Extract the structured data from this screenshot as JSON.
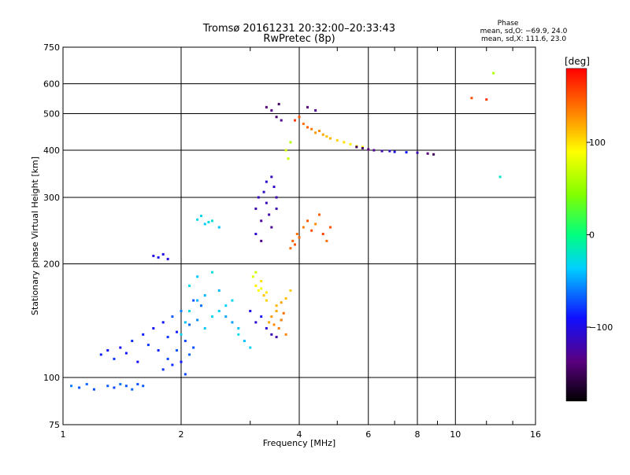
{
  "chart_data": {
    "type": "scatter",
    "title": "Tromsø 20161231 20:32:00–20:33:43",
    "subtitle": "RwPretec (8p)",
    "xlabel": "Frequency [MHz]",
    "ylabel": "Stationary phase Virtual Height [km]",
    "xscale": "log2",
    "yscale": "log",
    "xlim": [
      1,
      16
    ],
    "ylim": [
      75,
      750
    ],
    "x_ticks": [
      1,
      2,
      4,
      6,
      8,
      10,
      16
    ],
    "x_tick_labels": [
      "1",
      "2",
      "4",
      "6",
      "8",
      "10",
      "16"
    ],
    "y_ticks": [
      75,
      100,
      200,
      300,
      400,
      500,
      600,
      750
    ],
    "y_tick_labels": [
      "75",
      "100",
      "200",
      "300",
      "400",
      "500",
      "600",
      "750"
    ],
    "grid": true,
    "stats_legend": {
      "title": "Phase",
      "line1": "mean, sd,O: −69.9, 24.0",
      "line2": "mean, sd,X: 111.6, 23.0"
    },
    "colorbar": {
      "label": "[deg]",
      "range": [
        -180,
        180
      ],
      "ticks": [
        100,
        0,
        -100
      ],
      "tick_labels": [
        "100",
        "0",
        "−100"
      ]
    },
    "series": [
      {
        "x": [
          1.05,
          1.1,
          1.15,
          1.2,
          1.3,
          1.35,
          1.4,
          1.45,
          1.5,
          1.55,
          1.6,
          1.25,
          1.3,
          1.35,
          1.4,
          1.45,
          1.5,
          1.55,
          1.6,
          1.65,
          1.7,
          1.75,
          1.8,
          1.85,
          1.9,
          1.95,
          2.0,
          2.05,
          2.1,
          2.15,
          2.2,
          2.25,
          1.8,
          1.85,
          1.9,
          1.95,
          2.0,
          2.05,
          2.1,
          2.15,
          1.7,
          1.75,
          1.8,
          1.85
        ],
        "y": [
          95,
          94,
          96,
          93,
          95,
          94,
          96,
          95,
          93,
          96,
          95,
          115,
          118,
          112,
          120,
          116,
          125,
          110,
          130,
          122,
          135,
          118,
          140,
          128,
          145,
          132,
          150,
          125,
          138,
          160,
          142,
          155,
          105,
          112,
          108,
          118,
          110,
          102,
          115,
          120,
          210,
          208,
          212,
          206
        ],
        "phase": [
          -60,
          -70,
          -65,
          -72,
          -68,
          -75,
          -62,
          -70,
          -66,
          -73,
          -69,
          -85,
          -90,
          -80,
          -95,
          -88,
          -82,
          -92,
          -86,
          -78,
          -94,
          -84,
          -90,
          -80,
          -70,
          -86,
          -60,
          -74,
          -65,
          -70,
          -55,
          -62,
          -80,
          -75,
          -82,
          -70,
          -88,
          -76,
          -65,
          -72,
          -100,
          -95,
          -98,
          -102
        ]
      },
      {
        "x": [
          2.0,
          2.05,
          2.1,
          2.2,
          2.3,
          2.4,
          2.5,
          2.6,
          2.7,
          2.8,
          2.9,
          3.0,
          2.1,
          2.2,
          2.3,
          2.4,
          2.5,
          2.6,
          2.7,
          2.8,
          2.2,
          2.3,
          2.4,
          2.5,
          2.25,
          2.35
        ],
        "y": [
          130,
          140,
          150,
          160,
          135,
          145,
          170,
          155,
          140,
          130,
          125,
          120,
          175,
          185,
          165,
          190,
          150,
          145,
          160,
          135,
          262,
          255,
          260,
          250,
          268,
          258
        ],
        "phase": [
          -35,
          -40,
          -30,
          -45,
          -38,
          -32,
          -42,
          -36,
          -50,
          -28,
          -40,
          -34,
          -30,
          -38,
          -44,
          -26,
          -36,
          -48,
          -32,
          -40,
          -30,
          -35,
          -25,
          -40,
          -33,
          -29
        ]
      },
      {
        "x": [
          3.1,
          3.15,
          3.2,
          3.25,
          3.3,
          3.35,
          3.4,
          3.45,
          3.5,
          3.1,
          3.2,
          3.3,
          3.4,
          3.5,
          3.0,
          3.1,
          3.2,
          3.3,
          3.4,
          3.5,
          3.6,
          3.3,
          3.4,
          3.5,
          3.6,
          3.55
        ],
        "y": [
          280,
          300,
          260,
          310,
          290,
          270,
          250,
          320,
          300,
          240,
          230,
          330,
          340,
          280,
          150,
          140,
          145,
          135,
          130,
          128,
          142,
          520,
          510,
          490,
          480,
          530
        ],
        "phase": [
          -120,
          -115,
          -125,
          -110,
          -118,
          -122,
          -128,
          -112,
          -120,
          -108,
          -130,
          -105,
          -115,
          -118,
          -100,
          -110,
          -95,
          -105,
          -115,
          -120,
          -102,
          -140,
          -135,
          -145,
          -130,
          -150
        ]
      },
      {
        "x": [
          3.05,
          3.1,
          3.15,
          3.2,
          3.25,
          3.3,
          3.35,
          3.4,
          3.45,
          3.5,
          3.55,
          3.6,
          3.65,
          3.7,
          3.1,
          3.2,
          3.3,
          3.5,
          3.6,
          3.7,
          3.8,
          3.7,
          3.75,
          3.8
        ],
        "y": [
          185,
          175,
          170,
          180,
          165,
          160,
          140,
          145,
          138,
          150,
          135,
          142,
          148,
          130,
          190,
          172,
          168,
          155,
          158,
          162,
          170,
          400,
          380,
          420
        ],
        "phase": [
          80,
          95,
          90,
          100,
          110,
          105,
          120,
          125,
          130,
          118,
          135,
          128,
          140,
          132,
          70,
          85,
          98,
          115,
          122,
          112,
          108,
          75,
          70,
          60
        ]
      },
      {
        "x": [
          3.8,
          3.85,
          3.9,
          3.95,
          4.0,
          4.1,
          4.2,
          4.3,
          4.4,
          4.5,
          4.6,
          4.7,
          4.8,
          3.9,
          4.0,
          4.1,
          4.2,
          4.3,
          4.4,
          4.5,
          4.6,
          4.7,
          4.8,
          5.0,
          5.2,
          5.4,
          5.6,
          5.8
        ],
        "y": [
          220,
          230,
          225,
          240,
          235,
          250,
          260,
          245,
          255,
          270,
          240,
          230,
          250,
          480,
          490,
          470,
          460,
          455,
          445,
          450,
          440,
          435,
          430,
          425,
          420,
          415,
          410,
          408
        ],
        "phase": [
          140,
          145,
          150,
          138,
          142,
          135,
          148,
          152,
          130,
          145,
          155,
          140,
          150,
          160,
          150,
          140,
          145,
          135,
          125,
          130,
          120,
          110,
          115,
          105,
          100,
          95,
          90,
          85
        ]
      },
      {
        "x": [
          5.6,
          5.8,
          6.0,
          6.2,
          6.5,
          6.8,
          7.0,
          7.5,
          8.0,
          8.5,
          8.8,
          11.0,
          12.0,
          12.5,
          13.0,
          4.2,
          4.4
        ],
        "y": [
          408,
          405,
          402,
          400,
          398,
          398,
          396,
          395,
          394,
          392,
          390,
          550,
          545,
          640,
          340,
          520,
          510
        ],
        "phase": [
          -150,
          -145,
          -140,
          -130,
          -120,
          -110,
          -100,
          -90,
          -120,
          -140,
          -150,
          150,
          160,
          60,
          -20,
          -140,
          -130
        ]
      }
    ]
  }
}
